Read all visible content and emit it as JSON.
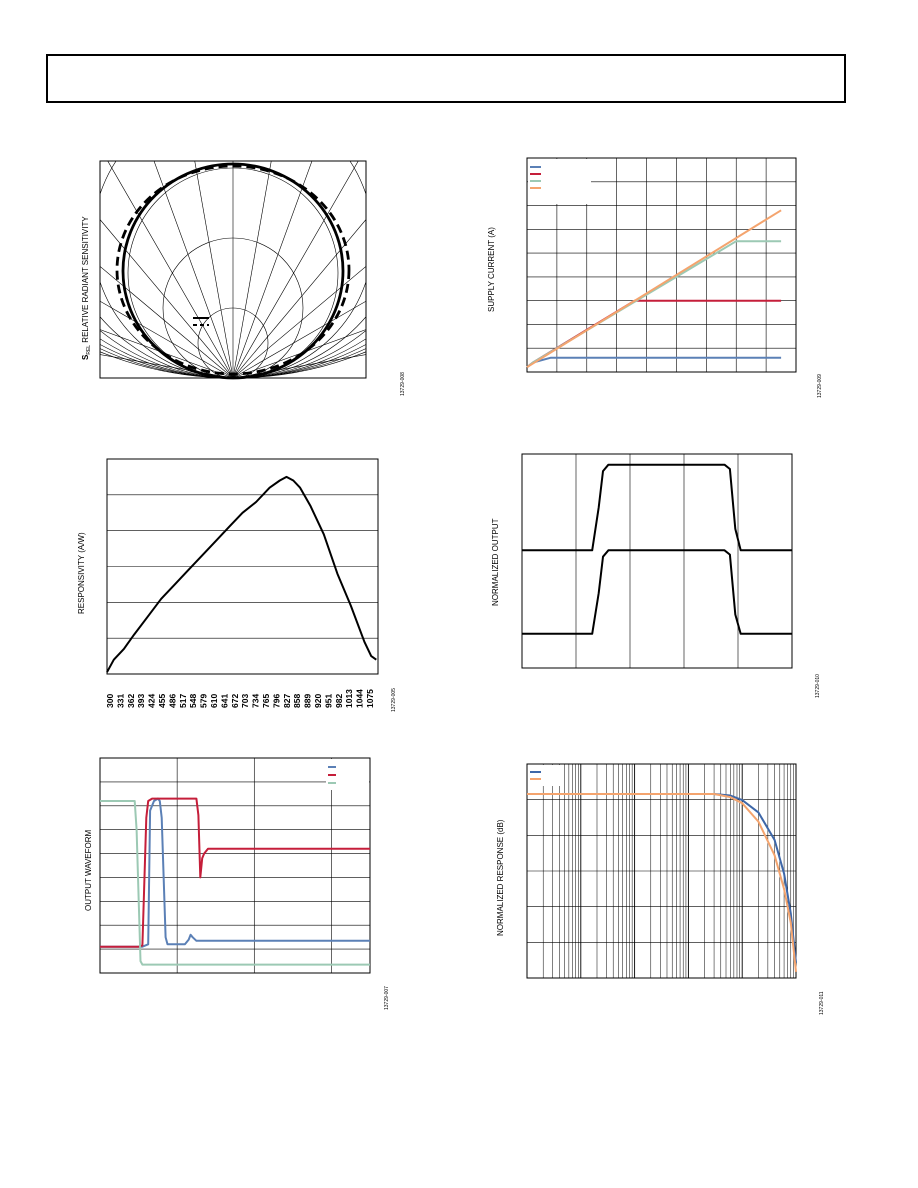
{
  "page": {
    "header_text": ""
  },
  "chart_data": [
    {
      "id": "radiant-sensitivity",
      "type": "polar-line",
      "ylabel_main": "S",
      "ylabel_sub": "REL",
      "ylabel_rest": "RELATIVE RADIANT SENSITIVITY",
      "code": "13729-008",
      "legend": [
        {
          "name": ""
        },
        {
          "name": ""
        }
      ],
      "series": [
        {
          "name": "",
          "style": "solid"
        },
        {
          "name": "",
          "style": "dashed"
        }
      ]
    },
    {
      "id": "supply-current",
      "type": "line",
      "ylabel": "SUPPLY CURRENT (A)",
      "xlabel": "",
      "code": "13729-009",
      "x_divisions": 9,
      "y_divisions": 9,
      "xlim": [
        0,
        9
      ],
      "ylim": [
        0,
        9
      ],
      "series": [
        {
          "name": "",
          "color": "#5b80b6",
          "x": [
            0,
            0.2,
            0.8,
            8.5
          ],
          "y": [
            0.2,
            0.4,
            0.6,
            0.6
          ]
        },
        {
          "name": "",
          "color": "#c51e3a",
          "x": [
            0,
            0.2,
            3.6,
            8.5
          ],
          "y": [
            0.2,
            0.4,
            3.0,
            3.0
          ]
        },
        {
          "name": "",
          "color": "#9cc9b4",
          "x": [
            0,
            0.2,
            7.0,
            8.5
          ],
          "y": [
            0.2,
            0.4,
            5.5,
            5.5
          ]
        },
        {
          "name": "",
          "color": "#f4a46e",
          "x": [
            0,
            8.5
          ],
          "y": [
            0.2,
            6.8
          ]
        }
      ]
    },
    {
      "id": "responsivity",
      "type": "line",
      "ylabel": "RESPONSIVITY (A/W)",
      "xlabel": "",
      "code": "13729-005",
      "categories": [
        "300",
        "331",
        "362",
        "393",
        "424",
        "455",
        "486",
        "517",
        "548",
        "579",
        "610",
        "641",
        "672",
        "703",
        "734",
        "765",
        "796",
        "827",
        "858",
        "889",
        "920",
        "951",
        "982",
        "1013",
        "1044",
        "1075"
      ],
      "xlim": [
        300,
        1100
      ],
      "y_divisions": 6,
      "ylim": [
        0,
        6
      ],
      "series": [
        {
          "name": "",
          "color": "#000000",
          "x": [
            300,
            320,
            350,
            380,
            420,
            460,
            500,
            540,
            580,
            620,
            660,
            700,
            740,
            780,
            810,
            830,
            850,
            870,
            900,
            940,
            980,
            1020,
            1060,
            1080,
            1095
          ],
          "y": [
            0.05,
            0.4,
            0.7,
            1.1,
            1.6,
            2.1,
            2.5,
            2.9,
            3.3,
            3.7,
            4.1,
            4.5,
            4.8,
            5.2,
            5.4,
            5.5,
            5.4,
            5.2,
            4.7,
            3.9,
            2.8,
            1.9,
            0.9,
            0.5,
            0.4
          ]
        }
      ]
    },
    {
      "id": "normalized-output",
      "type": "line",
      "ylabel": "NORMALIZED OUTPUT",
      "xlabel": "",
      "code": "13729-010",
      "x_divisions": 5,
      "xlim": [
        0,
        5
      ],
      "ylim": [
        0,
        1
      ],
      "series": [
        {
          "name": "",
          "color": "#000000",
          "x": [
            0,
            1.3,
            1.42,
            1.5,
            1.6,
            3.75,
            3.85,
            3.95,
            4.05,
            5
          ],
          "y": [
            0.55,
            0.55,
            0.75,
            0.92,
            0.95,
            0.95,
            0.93,
            0.65,
            0.55,
            0.55
          ]
        },
        {
          "name": "",
          "color": "#000000",
          "x": [
            0,
            1.3,
            1.42,
            1.5,
            1.6,
            3.75,
            3.85,
            3.95,
            4.05,
            5
          ],
          "y": [
            0.16,
            0.16,
            0.35,
            0.52,
            0.55,
            0.55,
            0.53,
            0.25,
            0.16,
            0.16
          ]
        }
      ]
    },
    {
      "id": "output-waveform",
      "type": "line",
      "ylabel": "OUTPUT WAVEFORM",
      "xlabel": "",
      "code": "13729-007",
      "x_divisions": 7,
      "y_divisions": 9,
      "xlim": [
        0,
        7
      ],
      "ylim": [
        0,
        9
      ],
      "legend": [
        {
          "name": "",
          "color": "#5b80b6"
        },
        {
          "name": "",
          "color": "#c51e3a"
        },
        {
          "name": "",
          "color": "#9cc9b4"
        }
      ],
      "series": [
        {
          "name": "",
          "color": "#5b80b6",
          "x": [
            0,
            1.1,
            1.25,
            1.3,
            1.4,
            1.5,
            1.55,
            1.6,
            1.7,
            1.75,
            2.2,
            2.3,
            2.35,
            2.4,
            2.5,
            7
          ],
          "y": [
            1.1,
            1.1,
            1.2,
            6.8,
            7.2,
            7.3,
            7.2,
            6.5,
            1.5,
            1.2,
            1.2,
            1.4,
            1.6,
            1.5,
            1.35,
            1.35
          ]
        },
        {
          "name": "",
          "color": "#c51e3a",
          "x": [
            0,
            1.0,
            1.1,
            1.2,
            1.25,
            1.35,
            2.5,
            2.55,
            2.6,
            2.65,
            2.7,
            2.8,
            7
          ],
          "y": [
            1.1,
            1.1,
            1.15,
            6.5,
            7.2,
            7.3,
            7.3,
            6.6,
            4.0,
            4.8,
            5.0,
            5.2,
            5.2
          ]
        },
        {
          "name": "",
          "color": "#9cc9b4",
          "x": [
            0,
            0.9,
            0.95,
            1.05,
            1.1,
            7
          ],
          "y": [
            7.2,
            7.2,
            6.0,
            0.5,
            0.35,
            0.35
          ]
        }
      ]
    },
    {
      "id": "normalized-response",
      "type": "line",
      "ylabel": "NORMALIZED RESPONSE (dB)",
      "xlabel": "",
      "code": "13729-011",
      "x_scale": "log",
      "xlim": [
        1,
        100000
      ],
      "y_divisions": 6,
      "ylim": [
        -6,
        0
      ],
      "legend": [
        {
          "name": "",
          "color": "#3e67a8"
        },
        {
          "name": "",
          "color": "#f4a46e"
        }
      ],
      "series": [
        {
          "name": "",
          "color": "#3e67a8",
          "x": [
            1,
            10,
            100,
            1000,
            3000,
            6000,
            10000,
            20000,
            40000,
            60000,
            80000,
            100000
          ],
          "y": [
            0,
            0,
            0,
            0,
            0,
            -0.05,
            -0.2,
            -0.6,
            -1.5,
            -2.6,
            -3.9,
            -5.5
          ]
        },
        {
          "name": "",
          "color": "#f4a46e",
          "x": [
            1,
            10,
            100,
            1000,
            3000,
            6000,
            10000,
            20000,
            40000,
            60000,
            80000,
            100000
          ],
          "y": [
            0,
            0,
            0,
            0,
            0,
            -0.1,
            -0.3,
            -0.9,
            -2.0,
            -3.1,
            -4.2,
            -5.8
          ]
        }
      ]
    }
  ]
}
